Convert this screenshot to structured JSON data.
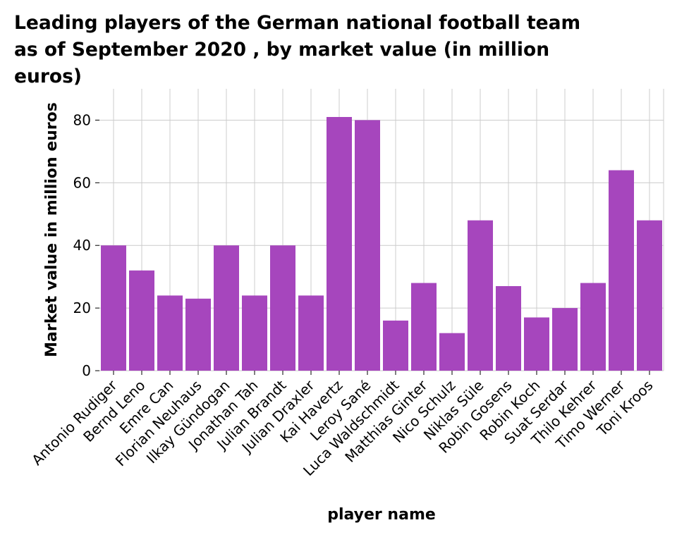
{
  "chart_data": {
    "type": "bar",
    "title": "Leading players of the German national football team as of September 2020 , by market value (in million euros)",
    "xlabel": "player name",
    "ylabel": "Market value in million euros",
    "ylim": [
      0,
      90
    ],
    "yticks": [
      0,
      20,
      40,
      60,
      80
    ],
    "grid": true,
    "bar_color": "#a646bd",
    "grid_color": "#cccccc",
    "categories": [
      "Antonio Rudiger",
      "Bernd Leno",
      "Emre Can",
      "Florian Neuhaus",
      "Ilkay Gündogan",
      "Jonathan Tah",
      "Julian Brandt",
      "Julian Draxler",
      "Kai Havertz",
      "Leroy Sané",
      "Luca Waldschmidt",
      "Matthias Ginter",
      "Nico Schulz",
      "Niklas Süle",
      "Robin Gosens",
      "Robin Koch",
      "Suat Serdar",
      "Thilo Kehrer",
      "Timo Werner",
      "Toni Kroos"
    ],
    "values": [
      40,
      32,
      24,
      23,
      40,
      24,
      40,
      24,
      81,
      80,
      16,
      28,
      12,
      48,
      27,
      17,
      20,
      28,
      64,
      48
    ]
  }
}
